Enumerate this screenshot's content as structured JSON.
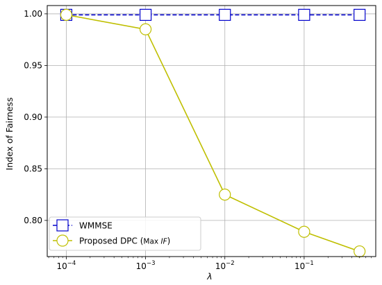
{
  "chart_data": {
    "type": "line",
    "xscale": "log",
    "xlabel": "λ",
    "ylabel": "Index of Fairness",
    "xlim": [
      5.75e-05,
      0.8
    ],
    "ylim": [
      0.765,
      1.008
    ],
    "grid": true,
    "legend_position": "lower-left",
    "x_ticks": [
      {
        "value": 0.0001,
        "base": "10",
        "exp": "−4"
      },
      {
        "value": 0.001,
        "base": "10",
        "exp": "−3"
      },
      {
        "value": 0.01,
        "base": "10",
        "exp": "−2"
      },
      {
        "value": 0.1,
        "base": "10",
        "exp": "−1"
      }
    ],
    "y_ticks": [
      {
        "value": 0.8,
        "label": "0.80"
      },
      {
        "value": 0.85,
        "label": "0.85"
      },
      {
        "value": 0.9,
        "label": "0.90"
      },
      {
        "value": 0.95,
        "label": "0.95"
      },
      {
        "value": 1.0,
        "label": "1.00"
      }
    ],
    "series": [
      {
        "name": "WMMSE",
        "color": "#0000cc",
        "linestyle": "dashed",
        "marker": "square",
        "x": [
          0.0001,
          0.001,
          0.01,
          0.1,
          0.5
        ],
        "values": [
          0.999,
          0.999,
          0.999,
          0.999,
          0.999
        ]
      },
      {
        "name_prefix": "Proposed DPC (",
        "name_small": "Max ",
        "name_italic": "IF",
        "name_suffix": ")",
        "color": "#bfbf00",
        "linestyle": "solid",
        "marker": "circle",
        "x": [
          0.0001,
          0.001,
          0.01,
          0.1,
          0.5
        ],
        "values": [
          0.999,
          0.985,
          0.825,
          0.789,
          0.77
        ]
      }
    ]
  }
}
